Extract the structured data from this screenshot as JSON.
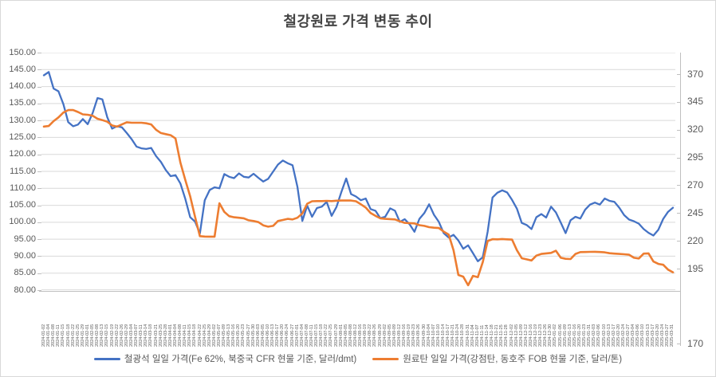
{
  "title": "철강원료 가격 변동 추이",
  "colors": {
    "iron_ore": "#4472C4",
    "coking_coal": "#ED7D31",
    "grid": "#D9D9D9",
    "axis_line": "#BFBFBF",
    "axis_text": "#595959",
    "title_text": "#444444"
  },
  "chart_data": {
    "type": "line",
    "title": "철강원료 가격 변동 추이",
    "grid": true,
    "legend_position": "bottom",
    "left_axis": {
      "min": 80,
      "max": 150,
      "step": 5,
      "ticks": [
        "150.00",
        "145.00",
        "140.00",
        "135.00",
        "130.00",
        "125.00",
        "120.00",
        "115.00",
        "110.00",
        "105.00",
        "100.00",
        "95.00",
        "90.00",
        "85.00",
        "80.00"
      ]
    },
    "right_axis": {
      "min": 170,
      "max": 370,
      "step": 25,
      "ticks": [
        "370",
        "345",
        "320",
        "295",
        "270",
        "245",
        "220",
        "195",
        "170"
      ]
    },
    "categories": [
      "2024-01-02",
      "2024-01-04",
      "2024-01-08",
      "2024-01-11",
      "2024-01-15",
      "2024-01-18",
      "2024-01-22",
      "2024-01-25",
      "2024-01-29",
      "2024-02-01",
      "2024-02-05",
      "2024-02-08",
      "2024-02-13",
      "2024-02-15",
      "2024-02-19",
      "2024-02-22",
      "2024-02-26",
      "2024-02-29",
      "2024-03-04",
      "2024-03-07",
      "2024-03-11",
      "2024-03-14",
      "2024-03-18",
      "2024-03-21",
      "2024-03-25",
      "2024-03-28",
      "2024-04-01",
      "2024-04-04",
      "2024-04-08",
      "2024-04-11",
      "2024-04-15",
      "2024-04-18",
      "2024-04-22",
      "2024-04-25",
      "2024-04-29",
      "2024-05-02",
      "2024-05-07",
      "2024-05-09",
      "2024-05-13",
      "2024-05-16",
      "2024-05-20",
      "2024-05-23",
      "2024-05-27",
      "2024-05-30",
      "2024-06-03",
      "2024-06-05",
      "2024-06-10",
      "2024-06-13",
      "2024-06-17",
      "2024-06-20",
      "2024-06-24",
      "2024-06-27",
      "2024-07-01",
      "2024-07-04",
      "2024-07-08",
      "2024-07-11",
      "2024-07-15",
      "2024-07-18",
      "2024-07-22",
      "2024-07-25",
      "2024-07-29",
      "2024-08-01",
      "2024-08-05",
      "2024-08-08",
      "2024-08-12",
      "2024-08-16",
      "2024-08-19",
      "2024-08-22",
      "2024-08-26",
      "2024-08-29",
      "2024-09-02",
      "2024-09-05",
      "2024-09-09",
      "2024-09-12",
      "2024-09-16",
      "2024-09-19",
      "2024-09-23",
      "2024-09-26",
      "2024-09-30",
      "2024-10-04",
      "2024-10-07",
      "2024-10-10",
      "2024-10-14",
      "2024-10-17",
      "2024-10-21",
      "2024-10-24",
      "2024-10-28",
      "2024-10-31",
      "2024-11-04",
      "2024-11-07",
      "2024-11-11",
      "2024-11-14",
      "2024-11-18",
      "2024-11-21",
      "2024-11-25",
      "2024-11-28",
      "2024-12-02",
      "2024-12-05",
      "2024-12-09",
      "2024-12-12",
      "2024-12-16",
      "2024-12-19",
      "2024-12-23",
      "2024-12-26",
      "2024-12-30",
      "2025-01-02",
      "2025-01-06",
      "2025-01-09",
      "2025-01-13",
      "2025-01-16",
      "2025-01-20",
      "2025-01-23",
      "2025-01-31",
      "2025-02-03",
      "2025-02-06",
      "2025-02-10",
      "2025-02-13",
      "2025-02-17",
      "2025-02-20",
      "2025-02-24",
      "2025-02-27",
      "2025-03-04",
      "2025-03-06",
      "2025-03-10",
      "2025-03-13",
      "2025-03-17",
      "2025-03-20",
      "2025-03-24",
      "2025-03-27",
      "2025-03-31"
    ],
    "series": [
      {
        "name": "철광석 일일 가격(Fe 62%, 북중국 CFR 현물 기준, 달러/dmt)",
        "axis": "left",
        "color": "#4472C4",
        "values": [
          143.3,
          144.3,
          139.4,
          138.6,
          134.8,
          129.5,
          128.3,
          128.8,
          130.4,
          128.9,
          132.2,
          136.6,
          136.2,
          131.0,
          127.6,
          128.3,
          128.0,
          126.3,
          124.5,
          122.3,
          121.8,
          121.6,
          121.9,
          119.5,
          117.8,
          115.4,
          113.6,
          113.9,
          111.4,
          106.9,
          101.5,
          100.2,
          96.7,
          106.5,
          109.5,
          110.3,
          110.0,
          114.2,
          113.4,
          113.0,
          114.4,
          113.4,
          113.2,
          114.3,
          113.1,
          112.0,
          112.8,
          114.9,
          117.0,
          118.2,
          117.4,
          116.8,
          110.5,
          100.4,
          104.9,
          101.6,
          104.2,
          104.6,
          106.0,
          101.9,
          104.5,
          108.9,
          112.9,
          108.3,
          107.6,
          106.5,
          107.0,
          103.9,
          103.4,
          101.2,
          101.6,
          104.1,
          103.4,
          100.1,
          100.9,
          99.4,
          97.2,
          101.0,
          102.7,
          105.3,
          102.2,
          100.1,
          96.8,
          95.5,
          96.3,
          94.6,
          92.2,
          93.2,
          90.9,
          88.5,
          89.7,
          97.2,
          107.3,
          108.7,
          109.4,
          108.8,
          106.6,
          104.0,
          99.8,
          99.2,
          98.0,
          101.5,
          102.4,
          101.4,
          104.6,
          102.9,
          99.9,
          96.8,
          100.6,
          101.6,
          101.1,
          103.7,
          105.2,
          105.8,
          105.2,
          107.0,
          106.3,
          106.0,
          104.3,
          102.1,
          100.8,
          100.3,
          99.6,
          98.0,
          96.9,
          96.1,
          97.8,
          101.0,
          103.1,
          104.3
        ]
      },
      {
        "name": "원료탄 일일 가격(강점탄, 동호주 FOB 현물 기준, 달러/톤)",
        "axis": "right",
        "color": "#ED7D31",
        "values": [
          321.5,
          322.0,
          326.5,
          330.0,
          334.5,
          336.8,
          336.8,
          335.0,
          332.8,
          332.4,
          331.5,
          328.7,
          327.5,
          326.0,
          322.5,
          321.4,
          323.5,
          325.5,
          325.0,
          325.0,
          325.0,
          324.5,
          323.5,
          318.5,
          315.5,
          314.5,
          313.5,
          310.5,
          288.0,
          272.0,
          257.0,
          238.0,
          220.0,
          219.6,
          219.5,
          219.5,
          250.5,
          242.5,
          238.5,
          237.5,
          237.0,
          236.5,
          234.7,
          234.0,
          233.0,
          230.0,
          228.8,
          229.5,
          234.0,
          235.0,
          236.0,
          235.5,
          237.0,
          241.0,
          250.0,
          252.3,
          252.5,
          252.5,
          252.7,
          252.5,
          252.8,
          253.0,
          253.0,
          253.0,
          252.3,
          249.5,
          246.5,
          241.5,
          238.8,
          236.5,
          236.0,
          235.8,
          235.5,
          233.8,
          232.3,
          232.0,
          231.8,
          230.2,
          229.5,
          228.3,
          227.8,
          227.5,
          224.2,
          221.5,
          207.0,
          184.0,
          182.5,
          174.5,
          183.2,
          182.0,
          196.0,
          215.5,
          217.2,
          217.0,
          217.3,
          217.0,
          216.8,
          207.0,
          199.5,
          198.5,
          197.5,
          202.0,
          203.5,
          204.0,
          204.5,
          206.5,
          200.0,
          199.0,
          198.8,
          203.5,
          205.2,
          205.3,
          205.4,
          205.5,
          205.3,
          205.0,
          204.2,
          203.8,
          203.5,
          203.2,
          202.8,
          200.0,
          199.3,
          203.8,
          204.0,
          196.5,
          194.3,
          193.5,
          189.0,
          186.5
        ]
      }
    ]
  }
}
